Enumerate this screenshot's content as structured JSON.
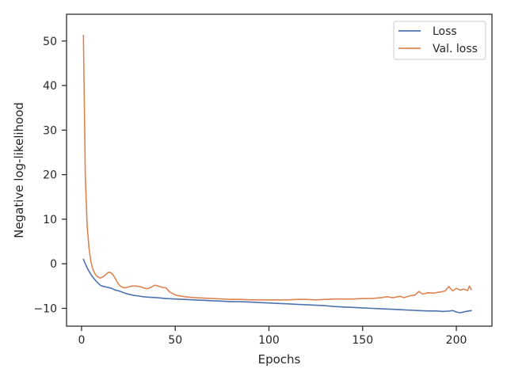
{
  "chart_data": {
    "type": "line",
    "title": "",
    "xlabel": "Epochs",
    "ylabel": "Negative log-likelihood",
    "xlim": [
      -8,
      219
    ],
    "ylim": [
      -14,
      56
    ],
    "xticks": [
      0,
      50,
      100,
      150,
      200
    ],
    "yticks": [
      -10,
      0,
      10,
      20,
      30,
      40,
      50
    ],
    "grid": false,
    "legend_position": "top-right",
    "series": [
      {
        "name": "Loss",
        "color": "#4c72b0",
        "x": [
          1,
          2,
          3,
          4,
          5,
          6,
          7,
          8,
          9,
          10,
          11,
          12,
          13,
          14,
          15,
          16,
          18,
          20,
          22,
          24,
          26,
          28,
          30,
          33,
          36,
          40,
          45,
          50,
          55,
          60,
          65,
          70,
          75,
          80,
          85,
          90,
          95,
          100,
          105,
          110,
          115,
          120,
          125,
          130,
          135,
          140,
          145,
          150,
          155,
          160,
          165,
          170,
          175,
          180,
          185,
          190,
          193,
          196,
          198,
          200,
          202,
          205,
          208
        ],
        "y": [
          1.0,
          0.0,
          -0.9,
          -1.7,
          -2.4,
          -3.0,
          -3.5,
          -4.0,
          -4.4,
          -4.8,
          -5.0,
          -5.1,
          -5.2,
          -5.3,
          -5.4,
          -5.5,
          -5.9,
          -6.1,
          -6.4,
          -6.7,
          -6.9,
          -7.1,
          -7.2,
          -7.4,
          -7.5,
          -7.6,
          -7.8,
          -7.9,
          -8.0,
          -8.1,
          -8.2,
          -8.3,
          -8.4,
          -8.5,
          -8.5,
          -8.6,
          -8.7,
          -8.8,
          -8.9,
          -9.0,
          -9.1,
          -9.2,
          -9.3,
          -9.4,
          -9.6,
          -9.7,
          -9.8,
          -9.9,
          -10.0,
          -10.1,
          -10.2,
          -10.3,
          -10.4,
          -10.5,
          -10.6,
          -10.6,
          -10.7,
          -10.6,
          -10.5,
          -10.8,
          -11.0,
          -10.7,
          -10.5
        ]
      },
      {
        "name": "Val. loss",
        "color": "#dd8452",
        "x": [
          1,
          2,
          3,
          4,
          5,
          6,
          7,
          8,
          9,
          10,
          11,
          12,
          13,
          14,
          15,
          16,
          17,
          18,
          19,
          20,
          21,
          22,
          23,
          25,
          27,
          29,
          31,
          33,
          35,
          37,
          39,
          41,
          43,
          45,
          47,
          49,
          51,
          55,
          60,
          65,
          70,
          75,
          80,
          85,
          90,
          95,
          100,
          105,
          110,
          115,
          120,
          125,
          130,
          135,
          140,
          145,
          150,
          155,
          160,
          163,
          166,
          170,
          172,
          175,
          178,
          180,
          182,
          185,
          188,
          190,
          192,
          194,
          196,
          198,
          200,
          202,
          204,
          206,
          207,
          208
        ],
        "y": [
          51.3,
          20.0,
          8.5,
          3.5,
          0.5,
          -1.2,
          -2.1,
          -2.7,
          -3.0,
          -3.2,
          -3.0,
          -2.8,
          -2.4,
          -2.0,
          -1.9,
          -2.1,
          -2.6,
          -3.3,
          -4.1,
          -4.7,
          -5.1,
          -5.3,
          -5.4,
          -5.2,
          -5.0,
          -5.0,
          -5.1,
          -5.4,
          -5.6,
          -5.3,
          -4.8,
          -5.0,
          -5.3,
          -5.4,
          -6.3,
          -6.8,
          -7.1,
          -7.4,
          -7.6,
          -7.7,
          -7.8,
          -7.9,
          -8.0,
          -8.0,
          -8.1,
          -8.1,
          -8.1,
          -8.1,
          -8.1,
          -8.0,
          -8.0,
          -8.1,
          -8.0,
          -7.9,
          -7.9,
          -7.9,
          -7.8,
          -7.8,
          -7.6,
          -7.4,
          -7.6,
          -7.3,
          -7.6,
          -7.2,
          -7.0,
          -6.2,
          -6.8,
          -6.5,
          -6.6,
          -6.4,
          -6.3,
          -6.1,
          -5.1,
          -6.1,
          -5.5,
          -5.9,
          -5.7,
          -6.0,
          -5.0,
          -5.8
        ]
      }
    ]
  }
}
